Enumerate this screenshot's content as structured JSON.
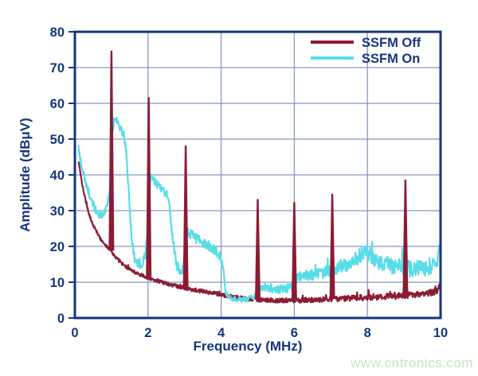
{
  "watermark": {
    "text": "www.cntronics.com",
    "color": "#c6e6bc"
  },
  "chart_data": {
    "type": "line",
    "title": "",
    "xlabel": "Frequency (MHz)",
    "ylabel": "Amplitude (dBμV)",
    "xlim": [
      0,
      10
    ],
    "ylim": [
      0,
      80
    ],
    "xticks": [
      0,
      2,
      4,
      6,
      8,
      10
    ],
    "yticks": [
      0,
      10,
      20,
      30,
      40,
      50,
      60,
      70,
      80
    ],
    "grid": true,
    "legend_position": "top-right-inside",
    "axis_color": "#16357e",
    "grid_color": "#8895c5",
    "legend": [
      "SSFM Off",
      "SSFM On"
    ],
    "series": [
      {
        "name": "SSFM Off",
        "color": "#8c1b34",
        "style": "noisy-line",
        "envelope": [
          [
            0.1,
            44.0,
            0.8
          ],
          [
            0.2,
            37.5,
            0.8
          ],
          [
            0.3,
            32.5,
            0.8
          ],
          [
            0.4,
            28.5,
            0.8
          ],
          [
            0.5,
            26.0,
            0.9
          ],
          [
            0.6,
            24.0,
            0.9
          ],
          [
            0.7,
            22.2,
            0.9
          ],
          [
            0.8,
            20.8,
            1.0
          ],
          [
            0.9,
            19.6,
            1.0
          ],
          [
            1.0,
            18.8,
            1.0
          ],
          [
            1.1,
            17.2,
            1.0
          ],
          [
            1.25,
            15.6,
            1.0
          ],
          [
            1.4,
            14.2,
            1.0
          ],
          [
            1.6,
            13.0,
            1.0
          ],
          [
            1.8,
            12.0,
            1.0
          ],
          [
            2.0,
            11.2,
            1.0
          ],
          [
            2.2,
            10.5,
            1.1
          ],
          [
            2.5,
            9.7,
            1.1
          ],
          [
            2.8,
            8.9,
            1.1
          ],
          [
            3.1,
            8.2,
            1.1
          ],
          [
            3.4,
            7.6,
            1.1
          ],
          [
            3.7,
            7.1,
            1.1
          ],
          [
            4.0,
            6.5,
            1.2
          ],
          [
            4.3,
            5.9,
            1.2
          ],
          [
            4.6,
            5.4,
            1.2
          ],
          [
            5.0,
            5.1,
            1.3
          ],
          [
            5.5,
            4.9,
            1.3
          ],
          [
            6.0,
            4.9,
            1.3
          ],
          [
            6.5,
            5.0,
            1.4
          ],
          [
            7.0,
            5.3,
            1.5
          ],
          [
            7.5,
            5.5,
            1.6
          ],
          [
            8.0,
            5.8,
            1.7
          ],
          [
            8.5,
            6.0,
            1.7
          ],
          [
            9.0,
            6.3,
            1.8
          ],
          [
            9.4,
            6.6,
            1.8
          ],
          [
            9.7,
            7.0,
            1.8
          ],
          [
            9.9,
            7.6,
            1.8
          ],
          [
            10.0,
            9.0,
            1.8
          ]
        ],
        "peaks": [
          {
            "f": 1.0,
            "a": 74.5
          },
          {
            "f": 2.02,
            "a": 61.5
          },
          {
            "f": 3.03,
            "a": 48.0
          },
          {
            "f": 5.0,
            "a": 33.0
          },
          {
            "f": 6.0,
            "a": 32.2
          },
          {
            "f": 7.04,
            "a": 34.5
          },
          {
            "f": 9.04,
            "a": 38.5
          }
        ]
      },
      {
        "name": "SSFM On",
        "color": "#58dde8",
        "style": "noisy-line",
        "envelope": [
          [
            0.1,
            47.5,
            2.0
          ],
          [
            0.2,
            42.0,
            2.0
          ],
          [
            0.3,
            37.5,
            2.0
          ],
          [
            0.42,
            33.5,
            2.0
          ],
          [
            0.55,
            30.5,
            2.2
          ],
          [
            0.65,
            29.0,
            2.2
          ],
          [
            0.75,
            29.0,
            2.2
          ],
          [
            0.85,
            30.5,
            2.2
          ],
          [
            0.92,
            33.0,
            2.2
          ],
          [
            0.98,
            40.0,
            2.0
          ],
          [
            1.03,
            52.0,
            2.0
          ],
          [
            1.08,
            56.0,
            2.0
          ],
          [
            1.15,
            55.0,
            2.0
          ],
          [
            1.25,
            53.0,
            2.2
          ],
          [
            1.33,
            51.5,
            2.2
          ],
          [
            1.4,
            47.0,
            2.2
          ],
          [
            1.47,
            36.0,
            2.2
          ],
          [
            1.55,
            22.0,
            2.5
          ],
          [
            1.62,
            17.0,
            2.8
          ],
          [
            1.72,
            15.3,
            2.8
          ],
          [
            1.82,
            15.2,
            2.8
          ],
          [
            1.92,
            17.0,
            2.8
          ],
          [
            1.99,
            24.0,
            2.5
          ],
          [
            2.04,
            36.0,
            2.2
          ],
          [
            2.09,
            39.5,
            2.2
          ],
          [
            2.18,
            38.0,
            2.4
          ],
          [
            2.3,
            37.0,
            2.4
          ],
          [
            2.42,
            35.5,
            2.4
          ],
          [
            2.52,
            34.5,
            2.4
          ],
          [
            2.6,
            30.0,
            2.4
          ],
          [
            2.68,
            22.0,
            2.6
          ],
          [
            2.78,
            15.0,
            2.8
          ],
          [
            2.88,
            12.5,
            2.8
          ],
          [
            2.96,
            14.0,
            2.8
          ],
          [
            3.02,
            20.0,
            2.6
          ],
          [
            3.08,
            24.3,
            2.6
          ],
          [
            3.2,
            23.0,
            2.8
          ],
          [
            3.35,
            22.0,
            2.8
          ],
          [
            3.55,
            20.8,
            2.8
          ],
          [
            3.75,
            19.5,
            2.8
          ],
          [
            3.95,
            17.8,
            2.8
          ],
          [
            4.05,
            14.0,
            2.4
          ],
          [
            4.12,
            7.5,
            1.6
          ],
          [
            4.22,
            5.6,
            1.4
          ],
          [
            4.45,
            5.2,
            1.4
          ],
          [
            4.7,
            5.2,
            1.4
          ],
          [
            4.9,
            5.8,
            1.6
          ],
          [
            5.03,
            8.8,
            2.2
          ],
          [
            5.2,
            8.8,
            2.4
          ],
          [
            5.45,
            8.2,
            2.4
          ],
          [
            5.7,
            8.0,
            2.4
          ],
          [
            5.92,
            8.6,
            2.4
          ],
          [
            6.05,
            11.0,
            2.8
          ],
          [
            6.25,
            11.8,
            3.0
          ],
          [
            6.5,
            12.2,
            3.2
          ],
          [
            6.75,
            12.6,
            3.2
          ],
          [
            7.0,
            13.2,
            3.4
          ],
          [
            7.25,
            14.2,
            3.6
          ],
          [
            7.5,
            15.2,
            3.8
          ],
          [
            7.75,
            17.0,
            4.0
          ],
          [
            7.95,
            18.8,
            4.2
          ],
          [
            8.1,
            17.5,
            4.4
          ],
          [
            8.25,
            16.0,
            4.6
          ],
          [
            8.5,
            15.0,
            4.8
          ],
          [
            8.75,
            14.4,
            4.8
          ],
          [
            9.0,
            14.0,
            4.8
          ],
          [
            9.25,
            13.6,
            4.8
          ],
          [
            9.5,
            13.8,
            4.8
          ],
          [
            9.7,
            14.4,
            4.8
          ],
          [
            9.85,
            15.5,
            4.6
          ],
          [
            9.94,
            17.0,
            4.0
          ],
          [
            10.0,
            21.5,
            2.5
          ]
        ],
        "peaks": []
      }
    ]
  }
}
